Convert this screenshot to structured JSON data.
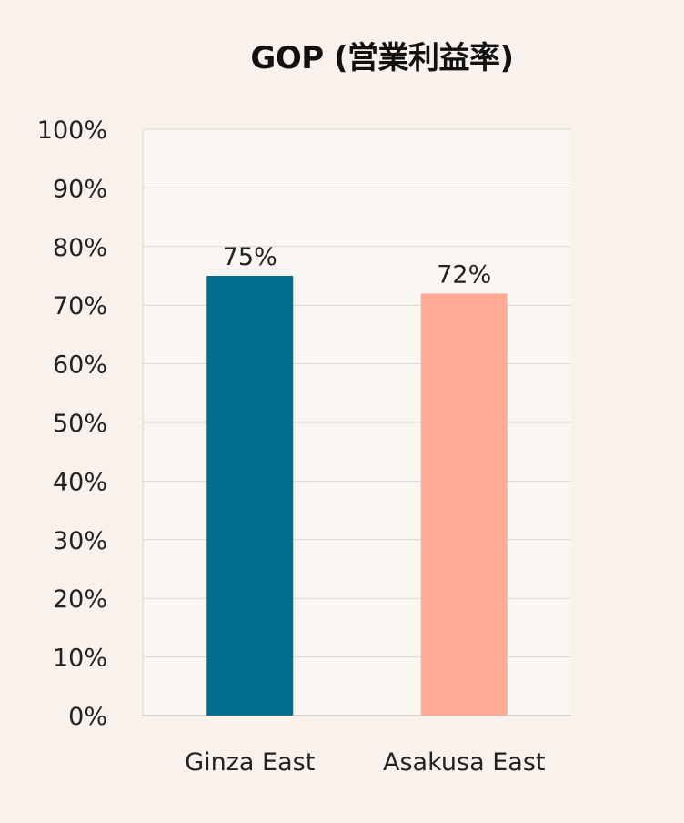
{
  "chart_data": {
    "type": "bar",
    "title": "GOP (営業利益率)",
    "categories": [
      "Ginza East",
      "Asakusa East"
    ],
    "values": [
      75,
      72
    ],
    "data_labels": [
      "75%",
      "72%"
    ],
    "colors": [
      "#006f8e",
      "#ffab96"
    ],
    "ylim": [
      0,
      100
    ],
    "yticks": [
      0,
      10,
      20,
      30,
      40,
      50,
      60,
      70,
      80,
      90,
      100
    ],
    "ytick_labels": [
      "0%",
      "10%",
      "20%",
      "30%",
      "40%",
      "50%",
      "60%",
      "70%",
      "80%",
      "90%",
      "100%"
    ],
    "grid": true,
    "xlabel": "",
    "ylabel": ""
  }
}
